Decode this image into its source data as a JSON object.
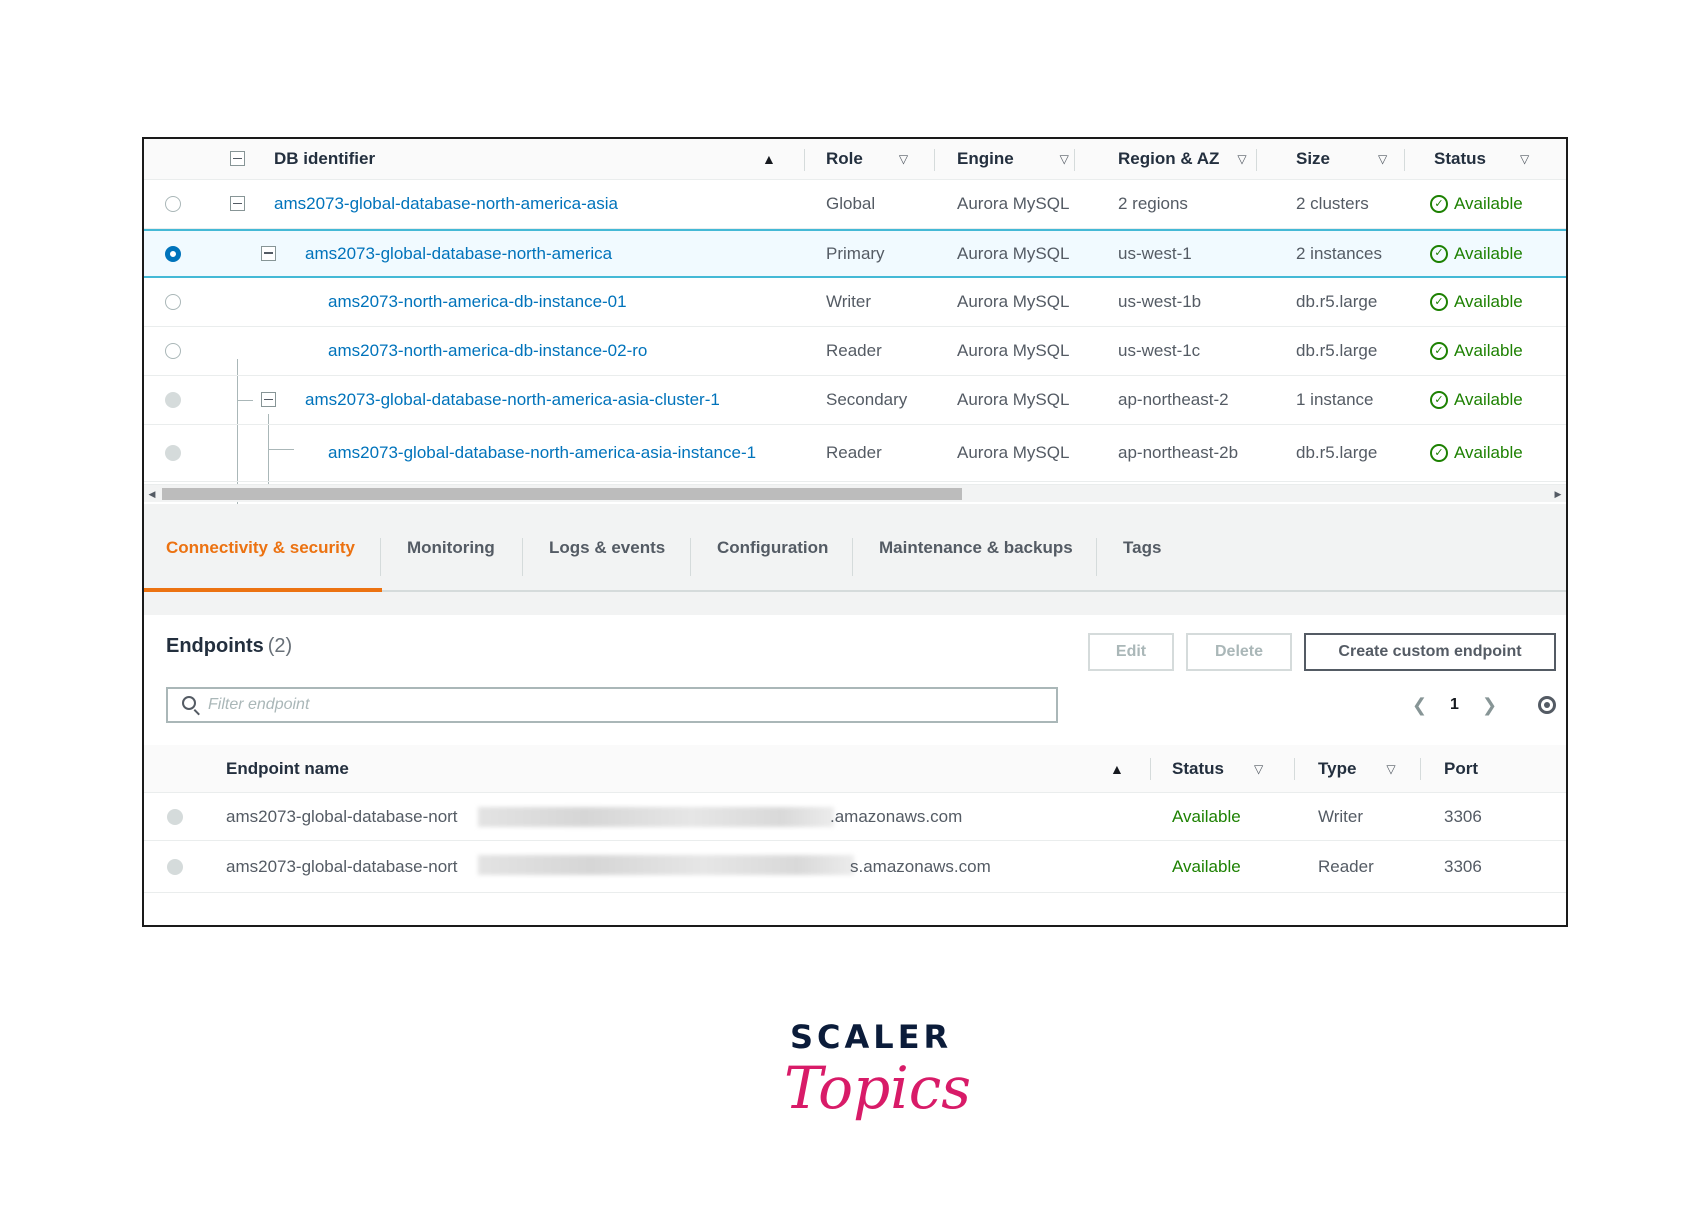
{
  "db_table": {
    "headers": {
      "db_identifier": "DB identifier",
      "role": "Role",
      "engine": "Engine",
      "region_az": "Region & AZ",
      "size": "Size",
      "status": "Status"
    },
    "rows": [
      {
        "id": "ams2073-global-database-north-america-asia",
        "role": "Global",
        "engine": "Aurora MySQL",
        "region": "2 regions",
        "size": "2 clusters",
        "status": "Available"
      },
      {
        "id": "ams2073-global-database-north-america",
        "role": "Primary",
        "engine": "Aurora MySQL",
        "region": "us-west-1",
        "size": "2 instances",
        "status": "Available"
      },
      {
        "id": "ams2073-north-america-db-instance-01",
        "role": "Writer",
        "engine": "Aurora MySQL",
        "region": "us-west-1b",
        "size": "db.r5.large",
        "status": "Available"
      },
      {
        "id": "ams2073-north-america-db-instance-02-ro",
        "role": "Reader",
        "engine": "Aurora MySQL",
        "region": "us-west-1c",
        "size": "db.r5.large",
        "status": "Available"
      },
      {
        "id": "ams2073-global-database-north-america-asia-cluster-1",
        "role": "Secondary",
        "engine": "Aurora MySQL",
        "region": "ap-northeast-2",
        "size": "1 instance",
        "status": "Available"
      },
      {
        "id": "ams2073-global-database-north-america-asia-instance-1",
        "role": "Reader",
        "engine": "Aurora MySQL",
        "region": "ap-northeast-2b",
        "size": "db.r5.large",
        "status": "Available"
      }
    ]
  },
  "tabs": [
    {
      "label": "Connectivity & security"
    },
    {
      "label": "Monitoring"
    },
    {
      "label": "Logs & events"
    },
    {
      "label": "Configuration"
    },
    {
      "label": "Maintenance & backups"
    },
    {
      "label": "Tags"
    }
  ],
  "endpoints": {
    "title": "Endpoints",
    "count": "(2)",
    "buttons": {
      "edit": "Edit",
      "delete": "Delete",
      "create": "Create custom endpoint"
    },
    "search_placeholder": "Filter endpoint",
    "page": "1",
    "headers": {
      "name": "Endpoint name",
      "status": "Status",
      "type": "Type",
      "port": "Port"
    },
    "rows": [
      {
        "name_prefix": "ams2073-global-database-nort",
        "name_suffix": ".amazonaws.com",
        "status": "Available",
        "type": "Writer",
        "port": "3306"
      },
      {
        "name_prefix": "ams2073-global-database-nort",
        "name_suffix": "s.amazonaws.com",
        "status": "Available",
        "type": "Reader",
        "port": "3306"
      }
    ]
  },
  "logo": {
    "top": "SCALER",
    "script": "Topics"
  },
  "colors": {
    "link": "#0073bb",
    "available": "#1d8102",
    "active_tab": "#ec7211",
    "selected_border": "#44b9d6",
    "logo_pink": "#d81b68",
    "logo_navy": "#0b1c3a"
  }
}
